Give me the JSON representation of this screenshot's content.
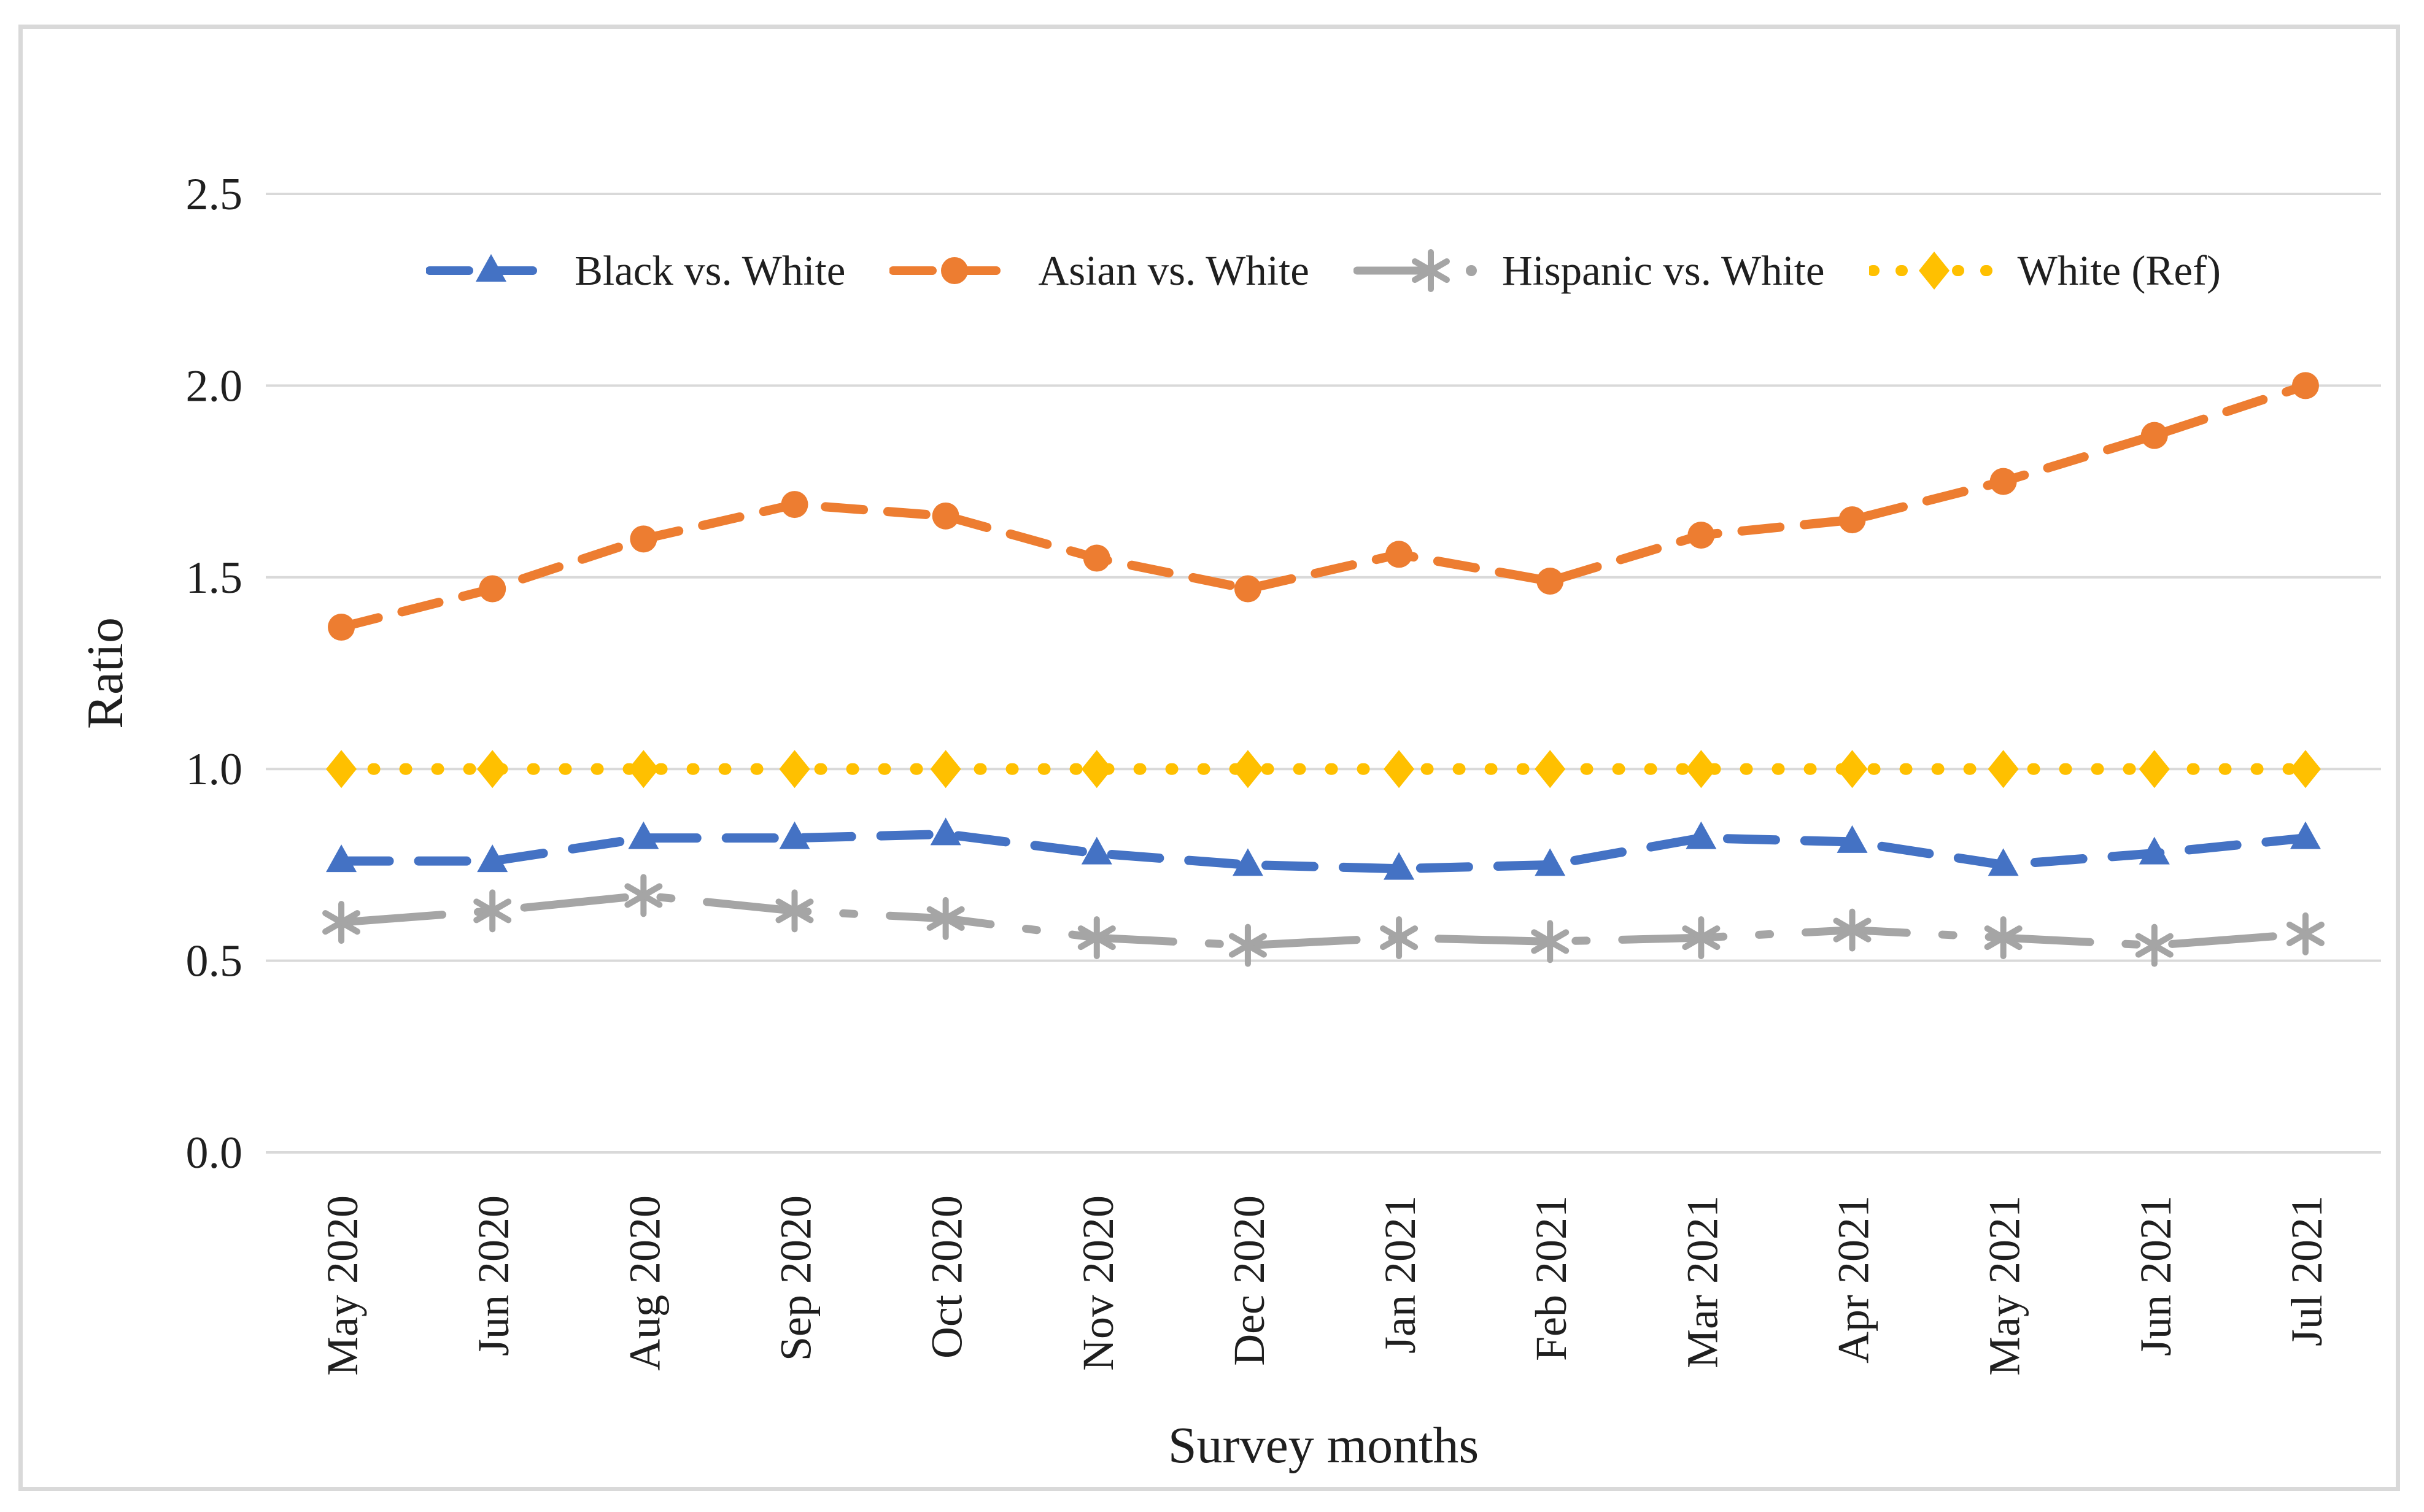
{
  "colors": {
    "grid": "#d9d9d9",
    "frame": "#d9d9d9",
    "text": "#1f1f1f",
    "background": "#ffffff",
    "series_blue": "#4472C4",
    "series_orange": "#ED7D31",
    "series_gray": "#A5A5A5",
    "series_yellow": "#FFC000"
  },
  "chart_data": {
    "type": "line",
    "title": "",
    "xlabel": "Survey months",
    "ylabel": "Ratio",
    "ylim": [
      0,
      2.5
    ],
    "y_ticks": [
      0.0,
      0.5,
      1.0,
      1.5,
      2.0,
      2.5
    ],
    "y_tick_labels": [
      "0.0",
      "0.5",
      "1.0",
      "1.5",
      "2.0",
      "2.5"
    ],
    "grid": true,
    "legend_position": "top",
    "x_tick_rotation_degrees": 90,
    "categories": [
      "May 2020",
      "Jun 2020",
      "Aug 2020",
      "Sep 2020",
      "Oct 2020",
      "Nov 2020",
      "Dec 2020",
      "Jan 2021",
      "Feb 2021",
      "Mar 2021",
      "Apr 2021",
      "May 2021",
      "Jun 2021",
      "Jul 2021"
    ],
    "series": [
      {
        "name": "Black vs. White",
        "color": "#4472C4",
        "marker": "triangle",
        "line_style": "dashed",
        "values": [
          0.76,
          0.76,
          0.82,
          0.82,
          0.83,
          0.78,
          0.75,
          0.74,
          0.75,
          0.82,
          0.81,
          0.75,
          0.78,
          0.82
        ]
      },
      {
        "name": "Asian vs. White",
        "color": "#ED7D31",
        "marker": "circle",
        "line_style": "dashed",
        "values": [
          1.37,
          1.47,
          1.6,
          1.69,
          1.66,
          1.55,
          1.47,
          1.56,
          1.49,
          1.61,
          1.65,
          1.75,
          1.87,
          2.0
        ]
      },
      {
        "name": "Hispanic vs. White",
        "color": "#A5A5A5",
        "marker": "asterisk",
        "line_style": "dash-dot",
        "values": [
          0.6,
          0.63,
          0.67,
          0.63,
          0.61,
          0.56,
          0.54,
          0.56,
          0.55,
          0.56,
          0.58,
          0.56,
          0.54,
          0.57
        ]
      },
      {
        "name": "White (Ref)",
        "color": "#FFC000",
        "marker": "diamond",
        "line_style": "dotted",
        "values": [
          1.0,
          1.0,
          1.0,
          1.0,
          1.0,
          1.0,
          1.0,
          1.0,
          1.0,
          1.0,
          1.0,
          1.0,
          1.0,
          1.0
        ]
      }
    ]
  }
}
